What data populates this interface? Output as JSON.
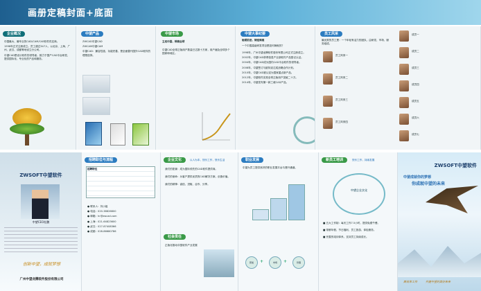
{
  "page_title": "画册定稿封面+底面",
  "row1": {
    "company_overview": {
      "header": "企业概况",
      "para1": "中国最大、最专业的CAD/CAM/CAE软件供应商。",
      "para2": "1998年正式注册成立。员工超过347人，以北京、上海、广州、武汉、成都等地设立分公司。",
      "para3": "中望CAD是设计软件的领导者，致力于国产CAD平台研发，提供国际化、专业化的产品和服务。"
    },
    "products": {
      "header": "中望产品",
      "item1": "ZWCAD中望CAD",
      "item2": "ZWCAM中望CAM",
      "item3": "ZWSOFT中望软件",
      "desc": "中望CAD：兼容性强，功能完善，是全面替代国外CAD软件的理想选择。"
    },
    "market": {
      "header": "中望市场",
      "subheader": "立足中国，畅销全球",
      "desc": "中望CAD全球正版用户数量已达数十万家，用户遍及全球多个国家和地区。"
    },
    "milestones": {
      "header": "中望大事纪要",
      "subheader": "砥砺前进，铸造辉煌",
      "question": "一个中国高级研发项目是如何铸就的？",
      "lines": [
        "1998年，广州中望龙腾软件股份有限公司正式注册成立。",
        "2002年，中望CAD获得信息产业部软件产品登记认证。",
        "2004年，中望CAD成为国内CAD平台软件的领导者。",
        "2008年，中望签订与欧特克达成战略合作计划。",
        "2010年，中望CAD被认定为国家重点新产品。",
        "2012年，中望软件实现全球正版用户突破二十万。",
        "2014年，中望发布第一款三维CAD产品。"
      ]
    },
    "staff": {
      "header": "员工风采",
      "intro": "最优秀的员工是：一个年轻有活力的团队，由研发、市场、服务组成。",
      "left_notes": [
        "员工风采一",
        "员工风采二",
        "员工风采三",
        "员工风采四"
      ],
      "right_notes": [
        "成员一",
        "成员二",
        "成员三",
        "成员四",
        "成员五",
        "成员六",
        "成员七"
      ]
    }
  },
  "row2": {
    "cover": {
      "logo": "ZWSOFT中望软件",
      "caption": "中望CEO杜鹏",
      "ceo_name": "CEO",
      "slogan": "创新中望，成就梦想",
      "footer": "广州中望龙腾软件股份有限公司"
    },
    "recruit": {
      "header": "招聘职位与流程",
      "table_title": "招聘职位",
      "contacts": [
        "联系人：刘小姐",
        "电话：020-38826800",
        "邮箱：hr@zwcad.com",
        "上海：021-64823600",
        "武汉：027-87408366",
        "成都：028-86680786"
      ]
    },
    "culture": {
      "header": "企业文化",
      "motto": "以人为本，快乐工作，快乐生活",
      "points": [
        "我们的愿景：成为国际领先的CAD软件提供商。",
        "我们的使命：为客户提供优质的CAD解决方案，创造价值。",
        "我们的精神：诚信、进取、合作、分享。"
      ],
      "social_header": "社会责任",
      "social_desc": "正版化推动中国软件产业发展"
    },
    "career": {
      "header": "职业发展",
      "desc": "中望为员工提供良好的职业发展平台与晋升通道。",
      "path_labels": [
        "研发",
        "市场",
        "管理"
      ]
    },
    "training": {
      "header": "新员工培训",
      "motto": "快乐工作，持续发展",
      "center": "中望企业文化",
      "items": [
        "五大工作制：每天工作7.5小时，提供免费午餐。",
        "带薪年假、节日福利、员工旅游、体检服务。",
        "完善的培训体系，支持员工持续成长。"
      ]
    },
    "back_cover": {
      "logo": "ZWSOFT中望软件",
      "slogan1": "中望成就你的梦想",
      "slogan2": "你成就中望的未来",
      "footer1": "高效率工作",
      "footer2": "共建中望的美好未来"
    }
  }
}
